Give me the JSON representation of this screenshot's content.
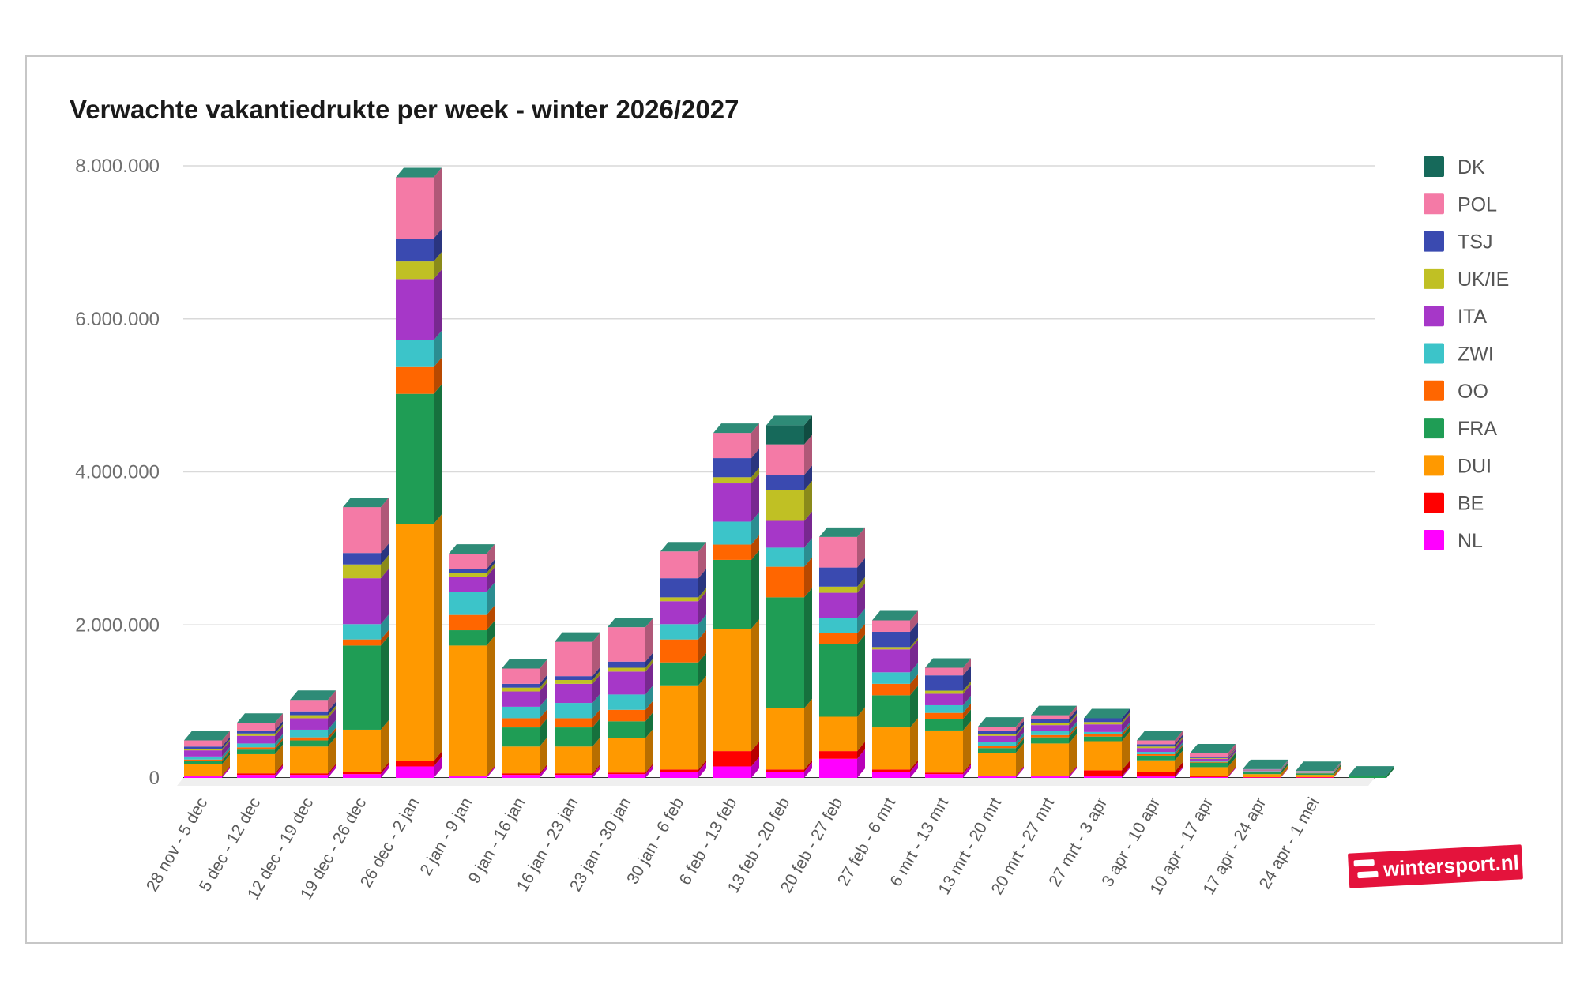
{
  "chart_data": {
    "type": "bar",
    "stacked": true,
    "title": "Verwachte vakantiedrukte per week - winter 2026/2027",
    "xlabel": "",
    "ylabel": "",
    "ylim": [
      0,
      8000000
    ],
    "yticks": [
      0,
      2000000,
      4000000,
      6000000,
      8000000
    ],
    "ytick_labels": [
      "0",
      "2.000.000",
      "4.000.000",
      "6.000.000",
      "8.000.000"
    ],
    "legend_position": "right",
    "categories": [
      "28 nov - 5 dec",
      "5 dec - 12 dec",
      "12 dec - 19 dec",
      "19 dec - 26 dec",
      "26 dec - 2 jan",
      "2 jan - 9 jan",
      "9 jan - 16 jan",
      "16 jan - 23 jan",
      "23 jan - 30 jan",
      "30 jan - 6 feb",
      "6 feb - 13 feb",
      "13 feb - 20 feb",
      "20 feb - 27 feb",
      "27 feb - 6 mrt",
      "6 mrt - 13 mrt",
      "13 mrt - 20 mrt",
      "20 mrt - 27 mrt",
      "27 mrt - 3 apr",
      "3 apr - 10 apr",
      "10 apr - 17 apr",
      "17 apr - 24 apr",
      "24 apr - 1 mei",
      ""
    ],
    "series": [
      {
        "name": "NL",
        "color": "#ff00ff",
        "values": [
          20000,
          40000,
          40000,
          50000,
          150000,
          20000,
          40000,
          40000,
          50000,
          80000,
          150000,
          80000,
          250000,
          80000,
          50000,
          20000,
          20000,
          20000,
          20000,
          10000,
          5000,
          5000,
          0
        ]
      },
      {
        "name": "BE",
        "color": "#ff0000",
        "values": [
          10000,
          20000,
          20000,
          30000,
          70000,
          10000,
          20000,
          20000,
          20000,
          30000,
          200000,
          30000,
          100000,
          30000,
          20000,
          10000,
          10000,
          80000,
          60000,
          10000,
          5000,
          5000,
          0
        ]
      },
      {
        "name": "DUI",
        "color": "#ff9900",
        "values": [
          150000,
          250000,
          350000,
          550000,
          3100000,
          1700000,
          350000,
          350000,
          450000,
          1100000,
          1600000,
          800000,
          450000,
          550000,
          550000,
          300000,
          420000,
          380000,
          150000,
          120000,
          40000,
          30000,
          0
        ]
      },
      {
        "name": "FRA",
        "color": "#1f9d55",
        "values": [
          40000,
          60000,
          80000,
          1100000,
          1700000,
          200000,
          250000,
          250000,
          220000,
          300000,
          900000,
          1450000,
          950000,
          420000,
          150000,
          60000,
          80000,
          60000,
          60000,
          60000,
          30000,
          20000,
          30000
        ]
      },
      {
        "name": "OO",
        "color": "#ff6600",
        "values": [
          20000,
          30000,
          40000,
          80000,
          350000,
          200000,
          120000,
          120000,
          150000,
          300000,
          200000,
          400000,
          140000,
          150000,
          80000,
          30000,
          30000,
          30000,
          20000,
          10000,
          5000,
          5000,
          0
        ]
      },
      {
        "name": "ZWI",
        "color": "#3cc4c9",
        "values": [
          40000,
          50000,
          100000,
          200000,
          350000,
          300000,
          150000,
          200000,
          200000,
          200000,
          300000,
          250000,
          200000,
          150000,
          100000,
          50000,
          50000,
          30000,
          30000,
          10000,
          5000,
          5000,
          0
        ]
      },
      {
        "name": "ITA",
        "color": "#a637c8",
        "values": [
          80000,
          100000,
          150000,
          600000,
          800000,
          200000,
          200000,
          250000,
          300000,
          300000,
          500000,
          350000,
          330000,
          300000,
          150000,
          80000,
          80000,
          100000,
          50000,
          30000,
          10000,
          5000,
          0
        ]
      },
      {
        "name": "UK/IE",
        "color": "#c0c024",
        "values": [
          20000,
          30000,
          40000,
          180000,
          230000,
          50000,
          50000,
          50000,
          50000,
          50000,
          80000,
          400000,
          80000,
          30000,
          40000,
          20000,
          30000,
          30000,
          20000,
          10000,
          5000,
          5000,
          0
        ]
      },
      {
        "name": "TSJ",
        "color": "#3a4ab0",
        "values": [
          30000,
          40000,
          50000,
          150000,
          300000,
          50000,
          50000,
          50000,
          80000,
          250000,
          250000,
          200000,
          250000,
          200000,
          200000,
          50000,
          50000,
          50000,
          30000,
          10000,
          5000,
          5000,
          0
        ]
      },
      {
        "name": "POL",
        "color": "#f47aa6",
        "values": [
          80000,
          100000,
          150000,
          600000,
          800000,
          200000,
          200000,
          450000,
          450000,
          350000,
          330000,
          400000,
          400000,
          150000,
          100000,
          50000,
          50000,
          0,
          50000,
          50000,
          5000,
          5000,
          0
        ]
      },
      {
        "name": "DK",
        "color": "#16695a",
        "values": [
          0,
          0,
          0,
          0,
          0,
          0,
          0,
          0,
          0,
          0,
          0,
          250000,
          0,
          0,
          0,
          0,
          0,
          0,
          0,
          0,
          0,
          0,
          0
        ]
      }
    ]
  }
}
